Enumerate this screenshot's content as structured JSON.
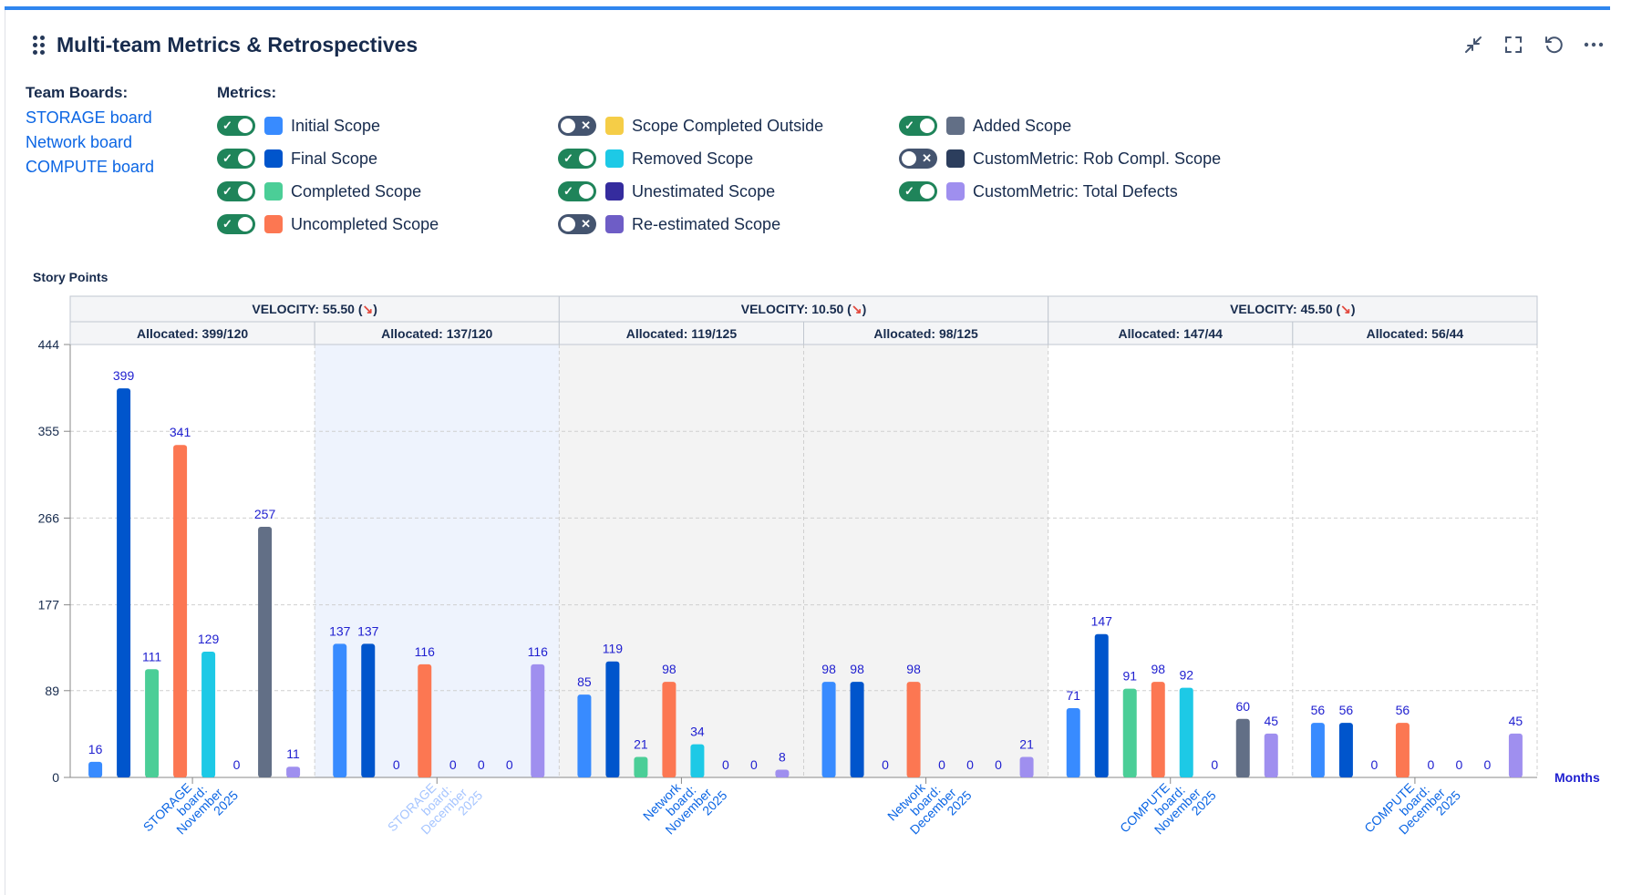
{
  "header": {
    "title": "Multi-team Metrics & Retrospectives"
  },
  "toolbar": [
    "minimize-icon",
    "fullscreen-icon",
    "refresh-icon",
    "more-icon"
  ],
  "team_boards": {
    "label": "Team Boards:",
    "items": [
      "STORAGE board",
      "Network board",
      "COMPUTE board"
    ]
  },
  "metrics": {
    "label": "Metrics:",
    "items": [
      {
        "label": "Initial Scope",
        "on": true,
        "color": "#388bff"
      },
      {
        "label": "Final Scope",
        "on": true,
        "color": "#0055cc"
      },
      {
        "label": "Completed Scope",
        "on": true,
        "color": "#4bce97"
      },
      {
        "label": "Uncompleted Scope",
        "on": true,
        "color": "#fc7752"
      },
      {
        "label": "Scope Completed Outside",
        "on": false,
        "color": "#f5cd47"
      },
      {
        "label": "Removed Scope",
        "on": true,
        "color": "#1dc9e6"
      },
      {
        "label": "Unestimated Scope",
        "on": true,
        "color": "#352c9e"
      },
      {
        "label": "Re-estimated Scope",
        "on": false,
        "color": "#6e5dc6"
      },
      {
        "label": "Added Scope",
        "on": true,
        "color": "#626f86"
      },
      {
        "label": "CustomMetric: Rob Compl. Scope",
        "on": false,
        "color": "#2c3e5d"
      },
      {
        "label": "CustomMetric: Total Defects",
        "on": true,
        "color": "#9f8fef"
      }
    ]
  },
  "chart_data": {
    "type": "bar",
    "ylabel": "Story Points",
    "xlabel": "Months",
    "ylim": [
      0,
      444
    ],
    "yticks": [
      0,
      89,
      177,
      266,
      355,
      444
    ],
    "grid": true,
    "velocity_groups": [
      {
        "label": "VELOCITY: 55.50 (",
        "arrow": "↘",
        "close": ")"
      },
      {
        "label": "VELOCITY: 10.50 (",
        "arrow": "↘",
        "close": ")"
      },
      {
        "label": "VELOCITY: 45.50 (",
        "arrow": "↘",
        "close": ")"
      }
    ],
    "categories": [
      {
        "lines": [
          "STORAGE",
          "board:",
          "November",
          "2025"
        ],
        "allocated": "Allocated: 399/120",
        "highlight": false,
        "muted_label": false,
        "bg": "#ffffff"
      },
      {
        "lines": [
          "STORAGE",
          "board:",
          "December",
          "2025"
        ],
        "allocated": "Allocated: 137/120",
        "highlight": true,
        "muted_label": true,
        "bg": "#eef3fd"
      },
      {
        "lines": [
          "Network",
          "board:",
          "November",
          "2025"
        ],
        "allocated": "Allocated: 119/125",
        "highlight": false,
        "muted_label": false,
        "bg": "#f3f3f3"
      },
      {
        "lines": [
          "Network",
          "board:",
          "December",
          "2025"
        ],
        "allocated": "Allocated: 98/125",
        "highlight": false,
        "muted_label": false,
        "bg": "#f3f3f3"
      },
      {
        "lines": [
          "COMPUTE",
          "board:",
          "November",
          "2025"
        ],
        "allocated": "Allocated: 147/44",
        "highlight": false,
        "muted_label": false,
        "bg": "#ffffff"
      },
      {
        "lines": [
          "COMPUTE",
          "board:",
          "December",
          "2025"
        ],
        "allocated": "Allocated: 56/44",
        "highlight": false,
        "muted_label": false,
        "bg": "#ffffff"
      }
    ],
    "series": [
      {
        "name": "Initial Scope",
        "color": "#388bff",
        "values": [
          16,
          137,
          85,
          98,
          71,
          56
        ]
      },
      {
        "name": "Final Scope",
        "color": "#0055cc",
        "values": [
          399,
          137,
          119,
          98,
          147,
          56
        ]
      },
      {
        "name": "Completed Scope",
        "color": "#4bce97",
        "values": [
          111,
          0,
          21,
          0,
          91,
          0
        ]
      },
      {
        "name": "Uncompleted Scope",
        "color": "#fc7752",
        "values": [
          341,
          116,
          98,
          98,
          98,
          56
        ]
      },
      {
        "name": "Removed Scope",
        "color": "#1dc9e6",
        "values": [
          129,
          0,
          34,
          0,
          92,
          0
        ]
      },
      {
        "name": "Unestimated Scope",
        "color": "#352c9e",
        "values": [
          0,
          0,
          0,
          0,
          0,
          0
        ]
      },
      {
        "name": "Added Scope",
        "color": "#626f86",
        "values": [
          257,
          0,
          0,
          0,
          60,
          0
        ]
      },
      {
        "name": "CustomMetric: Total Defects",
        "color": "#9f8fef",
        "values": [
          11,
          116,
          8,
          21,
          45,
          45
        ]
      }
    ]
  }
}
